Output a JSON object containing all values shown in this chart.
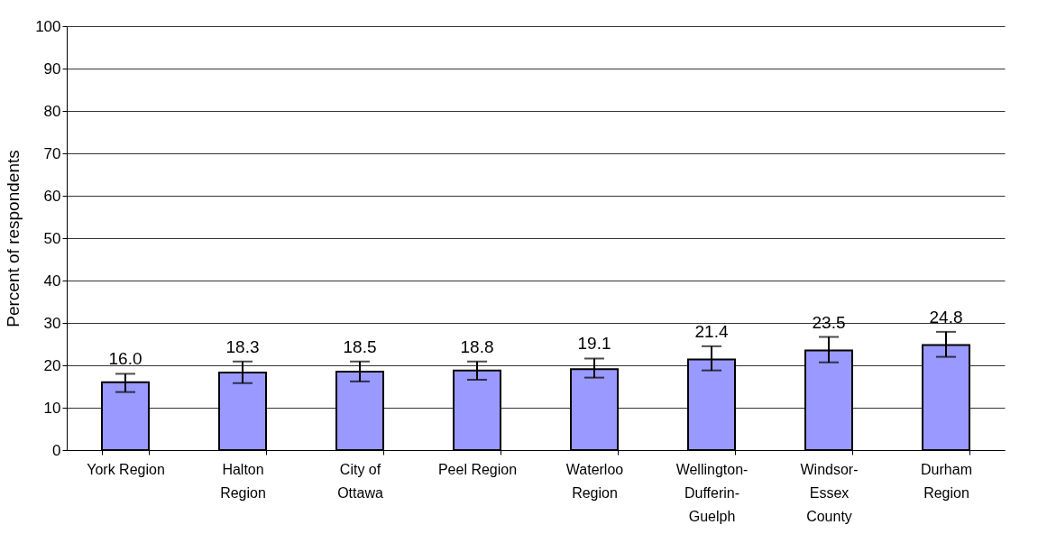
{
  "chart_data": {
    "type": "bar",
    "ylabel": "Percent of respondents",
    "categories": [
      "York Region",
      "Halton\nRegion",
      "City of\nOttawa",
      "Peel Region",
      "Waterloo\nRegion",
      "Wellington-\nDufferin-\nGuelph",
      "Windsor-\nEssex\nCounty",
      "Durham\nRegion"
    ],
    "values": [
      16.0,
      18.3,
      18.5,
      18.8,
      19.1,
      21.4,
      23.5,
      24.8
    ],
    "errors": [
      [
        13.7,
        18.0
      ],
      [
        15.8,
        20.9
      ],
      [
        16.2,
        20.9
      ],
      [
        16.6,
        20.9
      ],
      [
        17.1,
        21.6
      ],
      [
        18.8,
        24.5
      ],
      [
        20.7,
        26.7
      ],
      [
        22.0,
        27.9
      ]
    ],
    "color": "#9999ff",
    "ylim": [
      0,
      100
    ],
    "yticks": [
      0,
      10,
      20,
      30,
      40,
      50,
      60,
      70,
      80,
      90,
      100
    ],
    "value_labels": [
      "16.0",
      "18.3",
      "18.5",
      "18.8",
      "19.1",
      "21.4",
      "23.5",
      "24.8"
    ],
    "grid": "y"
  }
}
